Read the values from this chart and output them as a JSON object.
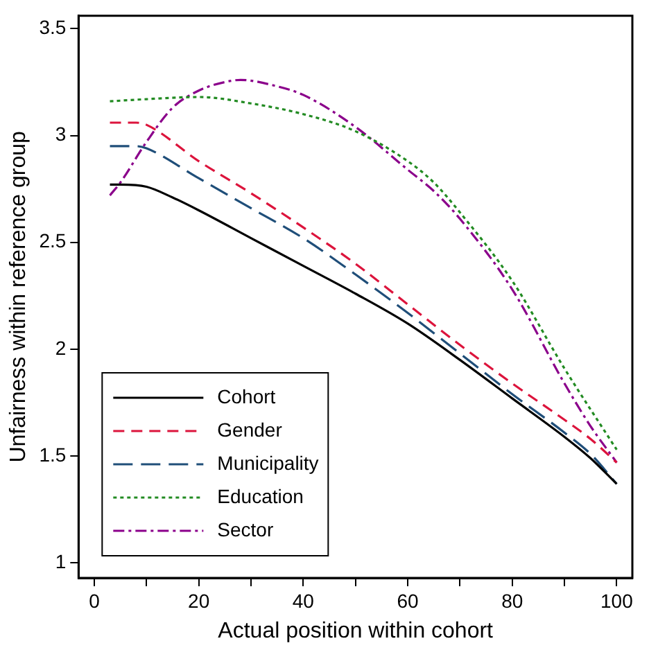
{
  "chart_data": {
    "type": "line",
    "xlabel": "Actual position within cohort",
    "ylabel": "Unfairness within reference group",
    "xlim": [
      -3,
      103
    ],
    "ylim": [
      0.93,
      3.56
    ],
    "xticks": [
      0,
      {
        "value": 10,
        "label": null
      },
      20,
      {
        "value": 30,
        "label": null
      },
      40,
      {
        "value": 50,
        "label": null
      },
      60,
      {
        "value": 70,
        "label": null
      },
      80,
      {
        "value": 90,
        "label": null
      },
      100
    ],
    "yticks": [
      1,
      1.5,
      2,
      2.5,
      3,
      3.5
    ],
    "grid": false,
    "legend": "bottom left",
    "marker": "none",
    "series": [
      {
        "name": "Cohort",
        "color": "#000000",
        "line_style": "solid",
        "x": [
          3,
          5,
          10,
          15,
          20,
          30,
          40,
          50,
          60,
          70,
          80,
          90,
          95,
          100
        ],
        "values": [
          2.77,
          2.77,
          2.76,
          2.71,
          2.65,
          2.52,
          2.39,
          2.26,
          2.12,
          1.95,
          1.77,
          1.59,
          1.49,
          1.37
        ]
      },
      {
        "name": "Gender",
        "color": "#dc143c",
        "line_style": "dashed",
        "x": [
          3,
          8,
          10,
          20,
          30,
          40,
          50,
          60,
          70,
          80,
          90,
          95,
          100
        ],
        "values": [
          3.06,
          3.06,
          3.05,
          2.88,
          2.73,
          2.57,
          2.4,
          2.21,
          2.02,
          1.84,
          1.67,
          1.58,
          1.47
        ]
      },
      {
        "name": "Municipality",
        "color": "#1f4e79",
        "line_style": "longdash",
        "x": [
          3,
          8,
          10,
          20,
          30,
          40,
          50,
          60,
          70,
          80,
          90,
          95,
          100
        ],
        "values": [
          2.95,
          2.95,
          2.94,
          2.8,
          2.66,
          2.52,
          2.35,
          2.17,
          1.98,
          1.79,
          1.61,
          1.51,
          1.37
        ]
      },
      {
        "name": "Education",
        "color": "#228b22",
        "line_style": "dotted",
        "x": [
          3,
          10,
          20,
          30,
          40,
          50,
          60,
          65,
          70,
          80,
          90,
          100
        ],
        "values": [
          3.16,
          3.17,
          3.18,
          3.15,
          3.1,
          3.02,
          2.88,
          2.78,
          2.64,
          2.32,
          1.91,
          1.53
        ]
      },
      {
        "name": "Sector",
        "color": "#8b008b",
        "line_style": "dashdot",
        "x": [
          3,
          5,
          10,
          15,
          20,
          25,
          28,
          35,
          40,
          50,
          60,
          65,
          70,
          80,
          90,
          95,
          100
        ],
        "values": [
          2.72,
          2.78,
          2.97,
          3.13,
          3.21,
          3.25,
          3.26,
          3.23,
          3.19,
          3.04,
          2.84,
          2.74,
          2.61,
          2.28,
          1.84,
          1.64,
          1.47
        ]
      }
    ]
  }
}
